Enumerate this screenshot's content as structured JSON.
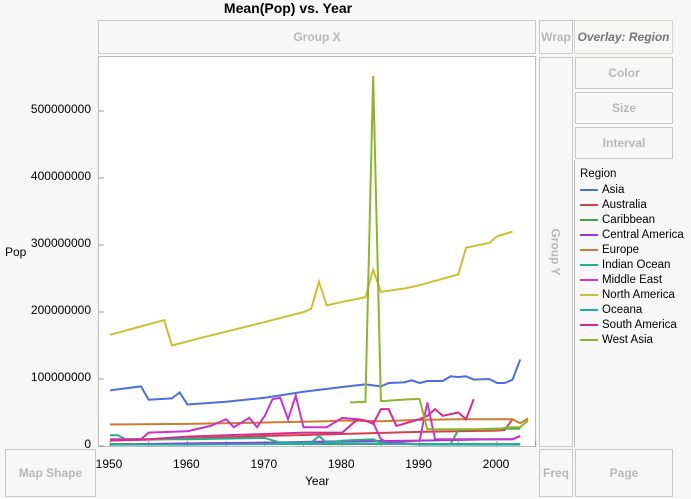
{
  "title": "Mean(Pop) vs. Year",
  "zones": {
    "group_x": "Group X",
    "wrap": "Wrap",
    "overlay": "Overlay: Region",
    "color": "Color",
    "size": "Size",
    "interval": "Interval",
    "group_y": "Group Y",
    "map_shape": "Map Shape",
    "freq": "Freq",
    "page": "Page"
  },
  "legend": {
    "title": "Region"
  },
  "chart_data": {
    "type": "line",
    "title": "Mean(Pop) vs. Year",
    "xlabel": "Year",
    "ylabel": "Pop",
    "xlim": [
      1949,
      2006
    ],
    "ylim": [
      0,
      580000000
    ],
    "xticks": [
      "1950",
      "1960",
      "1970",
      "1980",
      "1990",
      "2000"
    ],
    "yticks": [
      "0",
      "100000000",
      "200000000",
      "300000000",
      "400000000",
      "500000000"
    ],
    "legend_placement": "right",
    "series": [
      {
        "name": "Asia",
        "color": "#4a6fdc",
        "points": [
          [
            1950,
            83
          ],
          [
            1954,
            89
          ],
          [
            1955,
            69
          ],
          [
            1958,
            71
          ],
          [
            1959,
            80
          ],
          [
            1960,
            62
          ],
          [
            1965,
            66
          ],
          [
            1970,
            72
          ],
          [
            1975,
            81
          ],
          [
            1980,
            88
          ],
          [
            1983,
            92
          ],
          [
            1985,
            89
          ],
          [
            1986,
            94
          ],
          [
            1988,
            95
          ],
          [
            1989,
            98
          ],
          [
            1990,
            94
          ],
          [
            1991,
            97
          ],
          [
            1993,
            97
          ],
          [
            1994,
            104
          ],
          [
            1995,
            103
          ],
          [
            1996,
            104
          ],
          [
            1997,
            99
          ],
          [
            1999,
            100
          ],
          [
            2000,
            94
          ],
          [
            2001,
            94
          ],
          [
            2002,
            99
          ],
          [
            2003,
            129
          ]
        ]
      },
      {
        "name": "Australia",
        "color": "#d5404f",
        "points": [
          [
            1950,
            8
          ],
          [
            1960,
            11
          ],
          [
            1970,
            15
          ],
          [
            1980,
            18
          ],
          [
            1990,
            21
          ],
          [
            2000,
            23
          ],
          [
            2001,
            24
          ],
          [
            2002,
            40
          ]
        ]
      },
      {
        "name": "Caribbean",
        "color": "#3aaa48",
        "points": [
          [
            1950,
            3
          ],
          [
            1960,
            3
          ],
          [
            1970,
            3
          ],
          [
            1980,
            3
          ],
          [
            1990,
            3
          ],
          [
            1994,
            3
          ],
          [
            1995,
            24
          ],
          [
            2000,
            26
          ],
          [
            2003,
            26
          ]
        ]
      },
      {
        "name": "Central America",
        "color": "#9a35d8",
        "points": [
          [
            1950,
            2
          ],
          [
            1960,
            4
          ],
          [
            1970,
            5
          ],
          [
            1980,
            7
          ],
          [
            1990,
            8
          ],
          [
            2000,
            10
          ],
          [
            2002,
            10
          ],
          [
            2003,
            15
          ]
        ]
      },
      {
        "name": "Europe",
        "color": "#d07a2c",
        "points": [
          [
            1950,
            32
          ],
          [
            1960,
            33
          ],
          [
            1970,
            35
          ],
          [
            1974,
            36
          ],
          [
            1978,
            37
          ],
          [
            1980,
            38
          ],
          [
            1985,
            37
          ],
          [
            1990,
            39
          ],
          [
            1995,
            40
          ],
          [
            2000,
            40
          ],
          [
            2002,
            40
          ],
          [
            2003,
            34
          ],
          [
            2004,
            41
          ]
        ]
      },
      {
        "name": "Indian Ocean",
        "color": "#25b08a",
        "points": [
          [
            1950,
            16
          ],
          [
            1951,
            16
          ],
          [
            1952,
            10
          ],
          [
            1960,
            10
          ],
          [
            1970,
            12
          ],
          [
            1972,
            5
          ],
          [
            1976,
            5
          ],
          [
            1977,
            15
          ],
          [
            1978,
            5
          ],
          [
            1980,
            8
          ],
          [
            1984,
            10
          ],
          [
            1985,
            5
          ],
          [
            1990,
            2
          ],
          [
            2000,
            2
          ],
          [
            2003,
            2
          ]
        ]
      },
      {
        "name": "Middle East",
        "color": "#c935c9",
        "points": [
          [
            1950,
            10
          ],
          [
            1954,
            10
          ],
          [
            1955,
            20
          ],
          [
            1960,
            22
          ],
          [
            1963,
            30
          ],
          [
            1965,
            40
          ],
          [
            1966,
            28
          ],
          [
            1968,
            42
          ],
          [
            1969,
            28
          ],
          [
            1970,
            45
          ],
          [
            1971,
            70
          ],
          [
            1972,
            72
          ],
          [
            1973,
            40
          ],
          [
            1974,
            75
          ],
          [
            1975,
            28
          ],
          [
            1978,
            28
          ],
          [
            1980,
            42
          ],
          [
            1982,
            40
          ],
          [
            1984,
            35
          ],
          [
            1985,
            10
          ],
          [
            1986,
            5
          ],
          [
            1990,
            8
          ],
          [
            1991,
            65
          ],
          [
            1992,
            10
          ],
          [
            2000,
            10
          ],
          [
            2002,
            10
          ],
          [
            2003,
            15
          ]
        ]
      },
      {
        "name": "North America",
        "color": "#c9c030",
        "points": [
          [
            1950,
            166
          ],
          [
            1957,
            188
          ],
          [
            1958,
            150
          ],
          [
            1962,
            162
          ],
          [
            1970,
            185
          ],
          [
            1975,
            200
          ],
          [
            1976,
            205
          ],
          [
            1977,
            245
          ],
          [
            1978,
            210
          ],
          [
            1980,
            215
          ],
          [
            1983,
            222
          ],
          [
            1984,
            263
          ],
          [
            1985,
            230
          ],
          [
            1988,
            235
          ],
          [
            1990,
            240
          ],
          [
            1995,
            256
          ],
          [
            1996,
            296
          ],
          [
            1999,
            303
          ],
          [
            2000,
            313
          ],
          [
            2002,
            320
          ]
        ]
      },
      {
        "name": "Oceana",
        "color": "#24aaa8",
        "points": [
          [
            1950,
            2
          ],
          [
            1960,
            2
          ],
          [
            1970,
            3
          ],
          [
            1980,
            4
          ],
          [
            1990,
            3
          ],
          [
            2000,
            3
          ],
          [
            2003,
            3
          ]
        ]
      },
      {
        "name": "South America",
        "color": "#d62d8c",
        "points": [
          [
            1950,
            8
          ],
          [
            1955,
            10
          ],
          [
            1960,
            14
          ],
          [
            1970,
            18
          ],
          [
            1975,
            20
          ],
          [
            1980,
            20
          ],
          [
            1982,
            40
          ],
          [
            1983,
            38
          ],
          [
            1984,
            33
          ],
          [
            1985,
            55
          ],
          [
            1986,
            55
          ],
          [
            1987,
            30
          ],
          [
            1990,
            40
          ],
          [
            1991,
            45
          ],
          [
            1992,
            55
          ],
          [
            1993,
            45
          ],
          [
            1995,
            50
          ],
          [
            1996,
            40
          ],
          [
            1997,
            70
          ]
        ]
      },
      {
        "name": "West Asia",
        "color": "#8db52a",
        "points": [
          [
            1981,
            65
          ],
          [
            1983,
            66
          ],
          [
            1984,
            552
          ],
          [
            1985,
            67
          ],
          [
            1989,
            70
          ],
          [
            1990,
            70
          ],
          [
            1991,
            25
          ],
          [
            2000,
            25
          ],
          [
            2001,
            27
          ],
          [
            2002,
            28
          ],
          [
            2003,
            28
          ],
          [
            2004,
            38
          ]
        ]
      }
    ]
  }
}
